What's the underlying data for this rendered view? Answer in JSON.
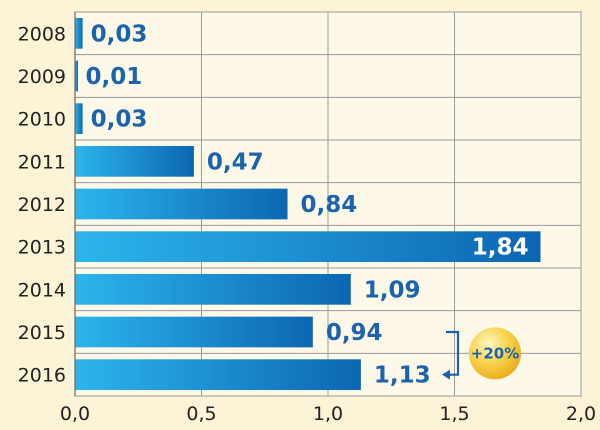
{
  "chart_data": {
    "type": "bar",
    "orientation": "horizontal",
    "categories": [
      "2008",
      "2009",
      "2010",
      "2011",
      "2012",
      "2013",
      "2014",
      "2015",
      "2016"
    ],
    "values": [
      0.03,
      0.01,
      0.03,
      0.47,
      0.84,
      1.84,
      1.09,
      0.94,
      1.13
    ],
    "value_labels": [
      "0,03",
      "0,01",
      "0,03",
      "0,47",
      "0,84",
      "1,84",
      "1,09",
      "0,94",
      "1,13"
    ],
    "xlim": [
      0,
      2.0
    ],
    "x_ticks": [
      "0,0",
      "0,5",
      "1,0",
      "1,5",
      "2,0"
    ],
    "title": "",
    "xlabel": "",
    "ylabel": "",
    "grid": true,
    "annotation": {
      "text": "+20%",
      "from_category": "2015",
      "to_category": "2016"
    }
  },
  "colors": {
    "background": "#fdf3d6",
    "bar_light": "#2cb5ec",
    "bar_dark": "#0c66b2",
    "label": "#1a63ad",
    "grid": "#9a9a9a",
    "badge": "#f5c42e"
  }
}
